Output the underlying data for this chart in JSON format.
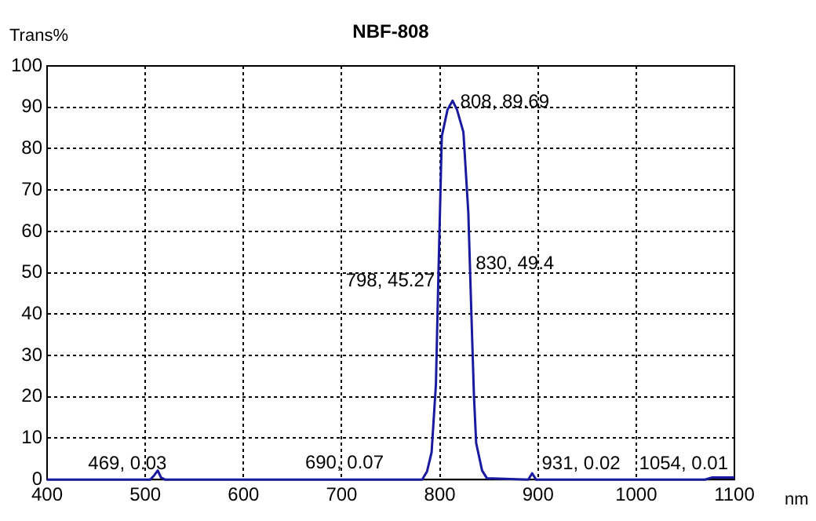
{
  "chart_data": {
    "type": "line",
    "title": "NBF-808",
    "xlabel": "nm",
    "ylabel": "Trans%",
    "series": [
      {
        "color": "#1a1aa0",
        "x": [
          400,
          505,
          509,
          512.7,
          516,
          520,
          600,
          700,
          782,
          787,
          791.6,
          796,
          798.6,
          802,
          807.8,
          813,
          817.5,
          824,
          829,
          832,
          834.7,
          837,
          843,
          848,
          890,
          894,
          898,
          1070,
          1077,
          1090,
          1100
        ],
        "values": [
          0,
          0,
          1,
          2.2,
          0.5,
          0,
          0,
          0,
          0,
          2,
          6.6,
          23,
          50,
          83,
          89.4,
          91.6,
          89.4,
          84,
          64.5,
          41,
          20.5,
          8.8,
          2.2,
          0.3,
          0,
          1.5,
          0,
          0,
          0.5,
          0.5,
          0.5
        ]
      }
    ],
    "xlim": [
      400,
      1100
    ],
    "xticks": [
      400,
      500,
      600,
      700,
      800,
      900,
      1000,
      1100
    ],
    "ylim": [
      0,
      100
    ],
    "yticks": [
      0,
      10,
      20,
      30,
      40,
      50,
      60,
      70,
      80,
      90,
      100
    ],
    "grid": true,
    "line_style": "solid",
    "marker": "none",
    "legend": false,
    "annotations": [
      {
        "text": "469, 0.03",
        "x": 469,
        "y": 0.03
      },
      {
        "text": "690, 0.07",
        "x": 690,
        "y": 0.07
      },
      {
        "text": "798, 45.27",
        "x": 798,
        "y": 45.27
      },
      {
        "text": "808, 89.69",
        "x": 808,
        "y": 89.69
      },
      {
        "text": "830, 49.4",
        "x": 830,
        "y": 49.4
      },
      {
        "text": "931, 0.02",
        "x": 931,
        "y": 0.02
      },
      {
        "text": "1054, 0.01",
        "x": 1054,
        "y": 0.01
      }
    ]
  }
}
